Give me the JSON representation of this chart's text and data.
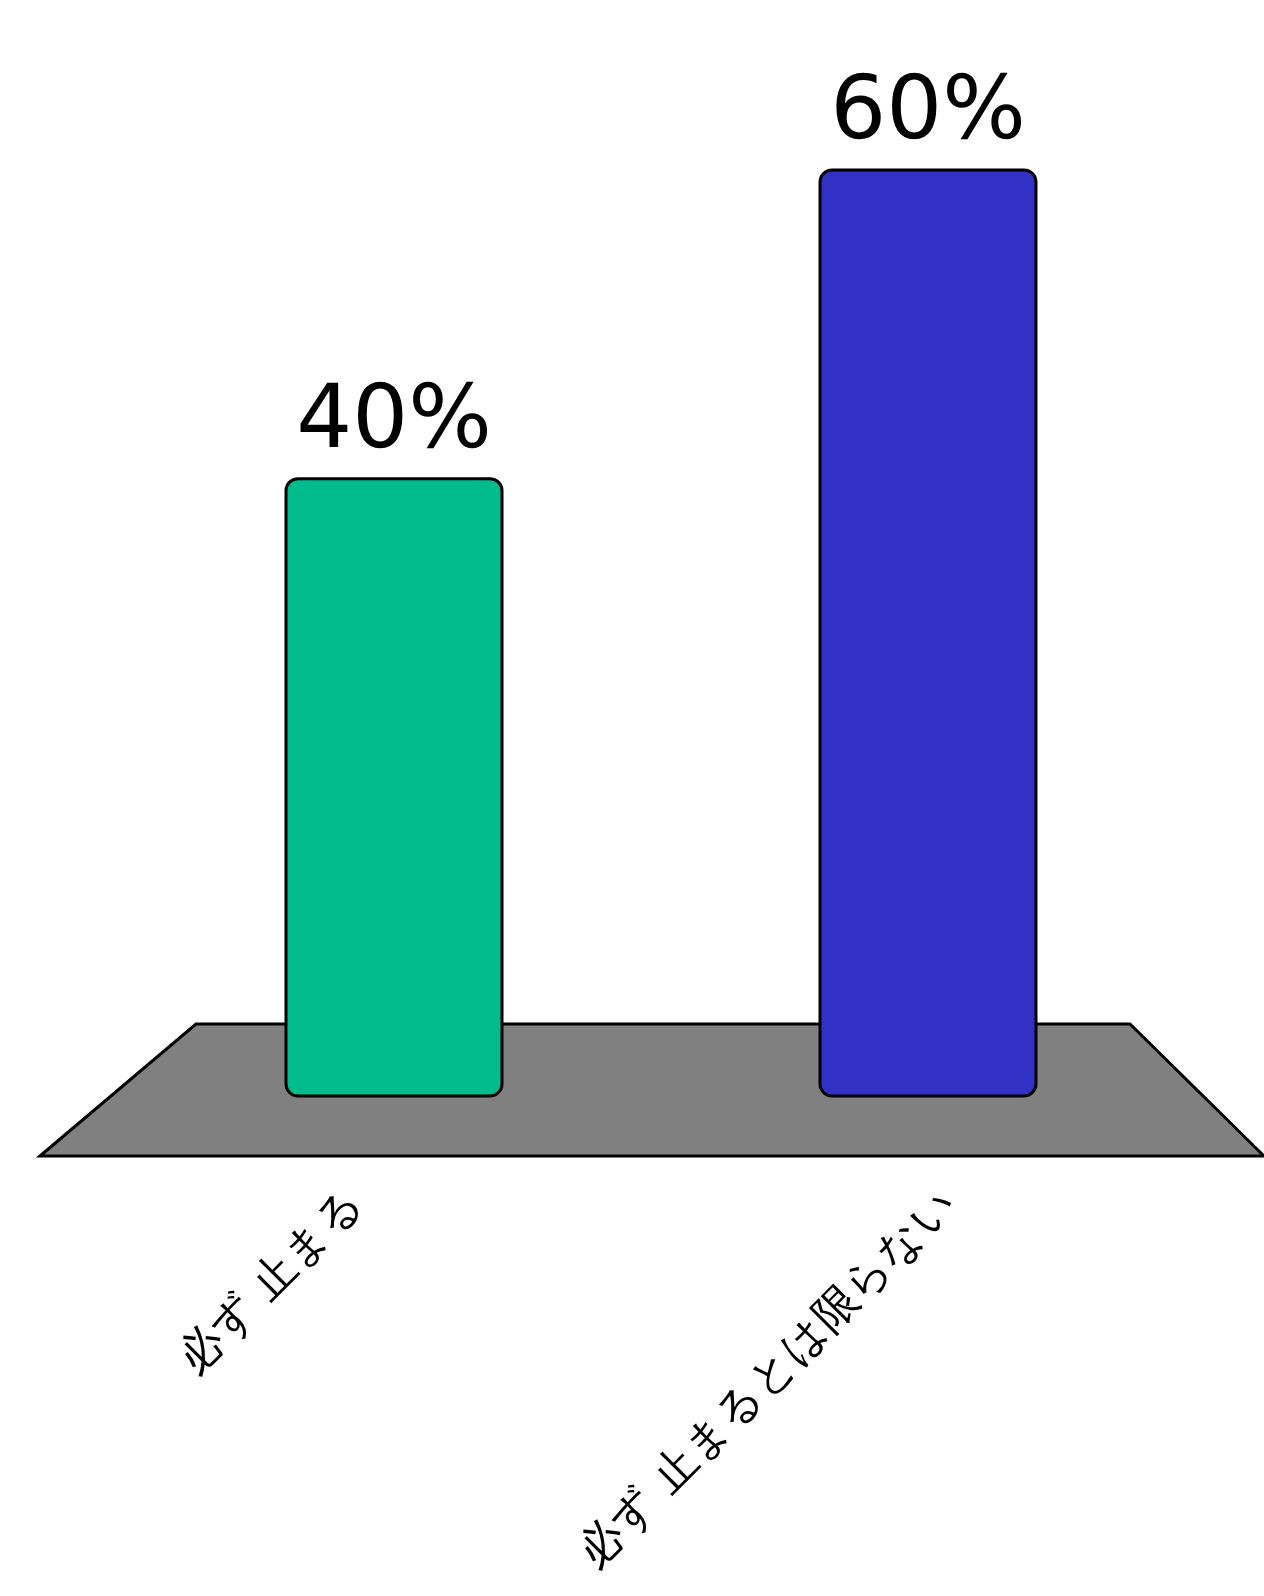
{
  "chart_data": {
    "type": "bar",
    "categories": [
      "必ず 止まる",
      "必ず 止まるとは限らない"
    ],
    "values": [
      40,
      60
    ],
    "colors": [
      "#00bb8c",
      "#3131c6"
    ],
    "value_labels": [
      "40%",
      "60%"
    ]
  }
}
